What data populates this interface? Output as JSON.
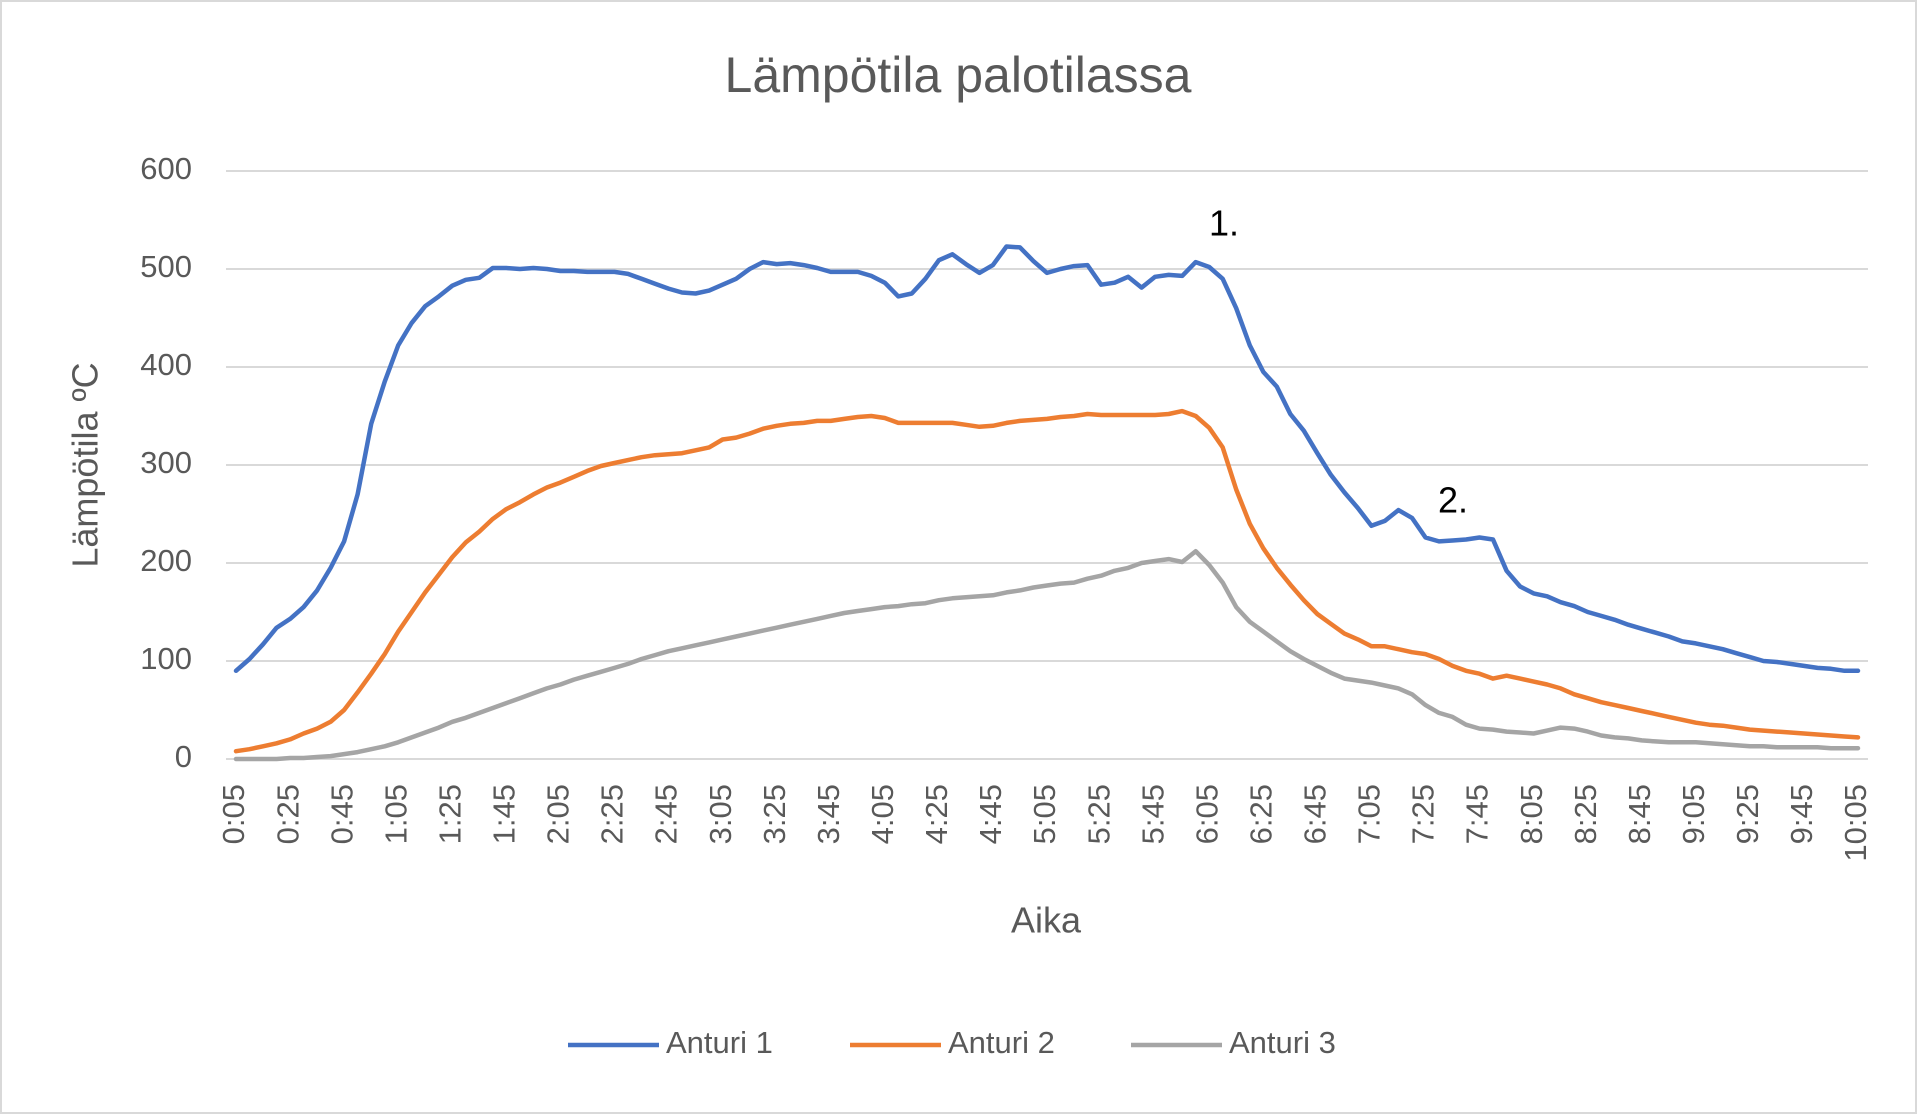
{
  "chart_data": {
    "type": "line",
    "title": "Lämpötila palotilassa",
    "x_label": "Aika",
    "y_label": "Lämpötila ºC",
    "categories": [
      "0:05",
      null,
      null,
      null,
      "0:25",
      null,
      null,
      null,
      "0:45",
      null,
      null,
      null,
      "1:05",
      null,
      null,
      null,
      "1:25",
      null,
      null,
      null,
      "1:45",
      null,
      null,
      null,
      "2:05",
      null,
      null,
      null,
      "2:25",
      null,
      null,
      null,
      "2:45",
      null,
      null,
      null,
      "3:05",
      null,
      null,
      null,
      "3:25",
      null,
      null,
      null,
      "3:45",
      null,
      null,
      null,
      "4:05",
      null,
      null,
      null,
      "4:25",
      null,
      null,
      null,
      "4:45",
      null,
      null,
      null,
      "5:05",
      null,
      null,
      null,
      "5:25",
      null,
      null,
      null,
      "5:45",
      null,
      null,
      null,
      "6:05",
      null,
      null,
      null,
      "6:25",
      null,
      null,
      null,
      "6:45",
      null,
      null,
      null,
      "7:05",
      null,
      null,
      null,
      "7:25",
      null,
      null,
      null,
      "7:45",
      null,
      null,
      null,
      "8:05",
      null,
      null,
      null,
      "8:25",
      null,
      null,
      null,
      "8:45",
      null,
      null,
      null,
      "9:05",
      null,
      null,
      null,
      "9:25",
      null,
      null,
      null,
      "9:45",
      null,
      null,
      null,
      "10:05"
    ],
    "series": [
      {
        "name": "Anturi 1",
        "color": "#4472c4",
        "values": [
          90,
          102,
          117,
          134,
          143,
          155,
          172,
          195,
          222,
          270,
          342,
          385,
          422,
          445,
          462,
          472,
          483,
          489,
          491,
          501,
          501,
          500,
          501,
          500,
          498,
          498,
          497,
          497,
          497,
          495,
          490,
          485,
          480,
          476,
          475,
          478,
          484,
          490,
          500,
          507,
          505,
          506,
          504,
          501,
          497,
          497,
          497,
          493,
          486,
          472,
          475,
          490,
          509,
          515,
          505,
          496,
          504,
          523,
          522,
          508,
          496,
          500,
          503,
          504,
          484,
          486,
          492,
          481,
          492,
          494,
          493,
          507,
          502,
          490,
          460,
          422,
          395,
          380,
          352,
          335,
          312,
          290,
          272,
          256,
          238,
          243,
          254,
          246,
          226,
          222,
          223,
          224,
          226,
          224,
          192,
          176,
          169,
          166,
          160,
          156,
          150,
          146,
          142,
          137,
          133,
          129,
          125,
          120,
          118,
          115,
          112,
          108,
          104,
          100,
          99,
          97,
          95,
          93,
          92,
          90,
          90
        ]
      },
      {
        "name": "Anturi 2",
        "color": "#ed7d31",
        "values": [
          8,
          10,
          13,
          16,
          20,
          26,
          31,
          38,
          50,
          68,
          87,
          107,
          130,
          150,
          170,
          188,
          206,
          221,
          232,
          245,
          255,
          262,
          270,
          277,
          282,
          288,
          294,
          299,
          302,
          305,
          308,
          310,
          311,
          312,
          315,
          318,
          326,
          328,
          332,
          337,
          340,
          342,
          343,
          345,
          345,
          347,
          349,
          350,
          348,
          343,
          343,
          343,
          343,
          343,
          341,
          339,
          340,
          343,
          345,
          346,
          347,
          349,
          350,
          352,
          351,
          351,
          351,
          351,
          351,
          352,
          355,
          350,
          338,
          318,
          275,
          240,
          215,
          195,
          178,
          162,
          148,
          138,
          128,
          122,
          115,
          115,
          112,
          109,
          107,
          102,
          95,
          90,
          87,
          82,
          85,
          82,
          79,
          76,
          72,
          66,
          62,
          58,
          55,
          52,
          49,
          46,
          43,
          40,
          37,
          35,
          34,
          32,
          30,
          29,
          28,
          27,
          26,
          25,
          24,
          23,
          22
        ]
      },
      {
        "name": "Anturi 3",
        "color": "#a5a5a5",
        "values": [
          0,
          0,
          0,
          0,
          1,
          1,
          2,
          3,
          5,
          7,
          10,
          13,
          17,
          22,
          27,
          32,
          38,
          42,
          47,
          52,
          57,
          62,
          67,
          72,
          76,
          81,
          85,
          89,
          93,
          97,
          102,
          106,
          110,
          113,
          116,
          119,
          122,
          125,
          128,
          131,
          134,
          137,
          140,
          143,
          146,
          149,
          151,
          153,
          155,
          156,
          158,
          159,
          162,
          164,
          165,
          166,
          167,
          170,
          172,
          175,
          177,
          179,
          180,
          184,
          187,
          192,
          195,
          200,
          202,
          204,
          201,
          212,
          198,
          180,
          155,
          140,
          130,
          120,
          110,
          102,
          95,
          88,
          82,
          80,
          78,
          75,
          72,
          66,
          55,
          47,
          43,
          35,
          31,
          30,
          28,
          27,
          26,
          29,
          32,
          31,
          28,
          24,
          22,
          21,
          19,
          18,
          17,
          17,
          17,
          16,
          15,
          14,
          13,
          13,
          12,
          12,
          12,
          12,
          11,
          11,
          11
        ]
      }
    ],
    "ylim": [
      0,
      600
    ],
    "yticks": [
      0,
      100,
      200,
      300,
      400,
      500,
      600
    ],
    "grid": true,
    "legend": "bottom",
    "annotations": [
      "1.",
      "2."
    ]
  }
}
